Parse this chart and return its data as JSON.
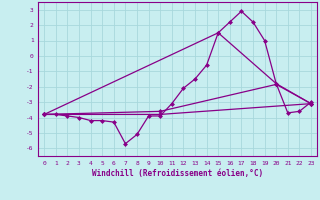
{
  "title": "",
  "xlabel": "Windchill (Refroidissement éolien,°C)",
  "bg_color": "#c8eef0",
  "grid_color": "#a8d8dc",
  "line_color": "#880088",
  "xlim": [
    -0.5,
    23.5
  ],
  "ylim": [
    -6.5,
    3.5
  ],
  "xticks": [
    0,
    1,
    2,
    3,
    4,
    5,
    6,
    7,
    8,
    9,
    10,
    11,
    12,
    13,
    14,
    15,
    16,
    17,
    18,
    19,
    20,
    21,
    22,
    23
  ],
  "yticks": [
    -6,
    -5,
    -4,
    -3,
    -2,
    -1,
    0,
    1,
    2,
    3
  ],
  "line1_x": [
    0,
    1,
    2,
    3,
    4,
    5,
    6,
    7,
    8,
    9,
    10,
    11,
    12,
    13,
    14,
    15,
    16,
    17,
    18,
    19,
    20,
    21,
    22,
    23
  ],
  "line1_y": [
    -3.8,
    -3.8,
    -3.9,
    -4.0,
    -4.2,
    -4.2,
    -4.3,
    -5.7,
    -5.1,
    -3.9,
    -3.9,
    -3.1,
    -2.1,
    -1.5,
    -0.6,
    1.5,
    2.2,
    2.9,
    2.2,
    1.0,
    -1.8,
    -3.7,
    -3.6,
    -3.0
  ],
  "line2_x": [
    0,
    10,
    23
  ],
  "line2_y": [
    -3.8,
    -3.8,
    -3.1
  ],
  "line3_x": [
    0,
    10,
    20,
    23
  ],
  "line3_y": [
    -3.8,
    -3.6,
    -1.85,
    -3.1
  ],
  "line4_x": [
    0,
    15,
    20,
    23
  ],
  "line4_y": [
    -3.8,
    1.5,
    -1.8,
    -3.1
  ]
}
